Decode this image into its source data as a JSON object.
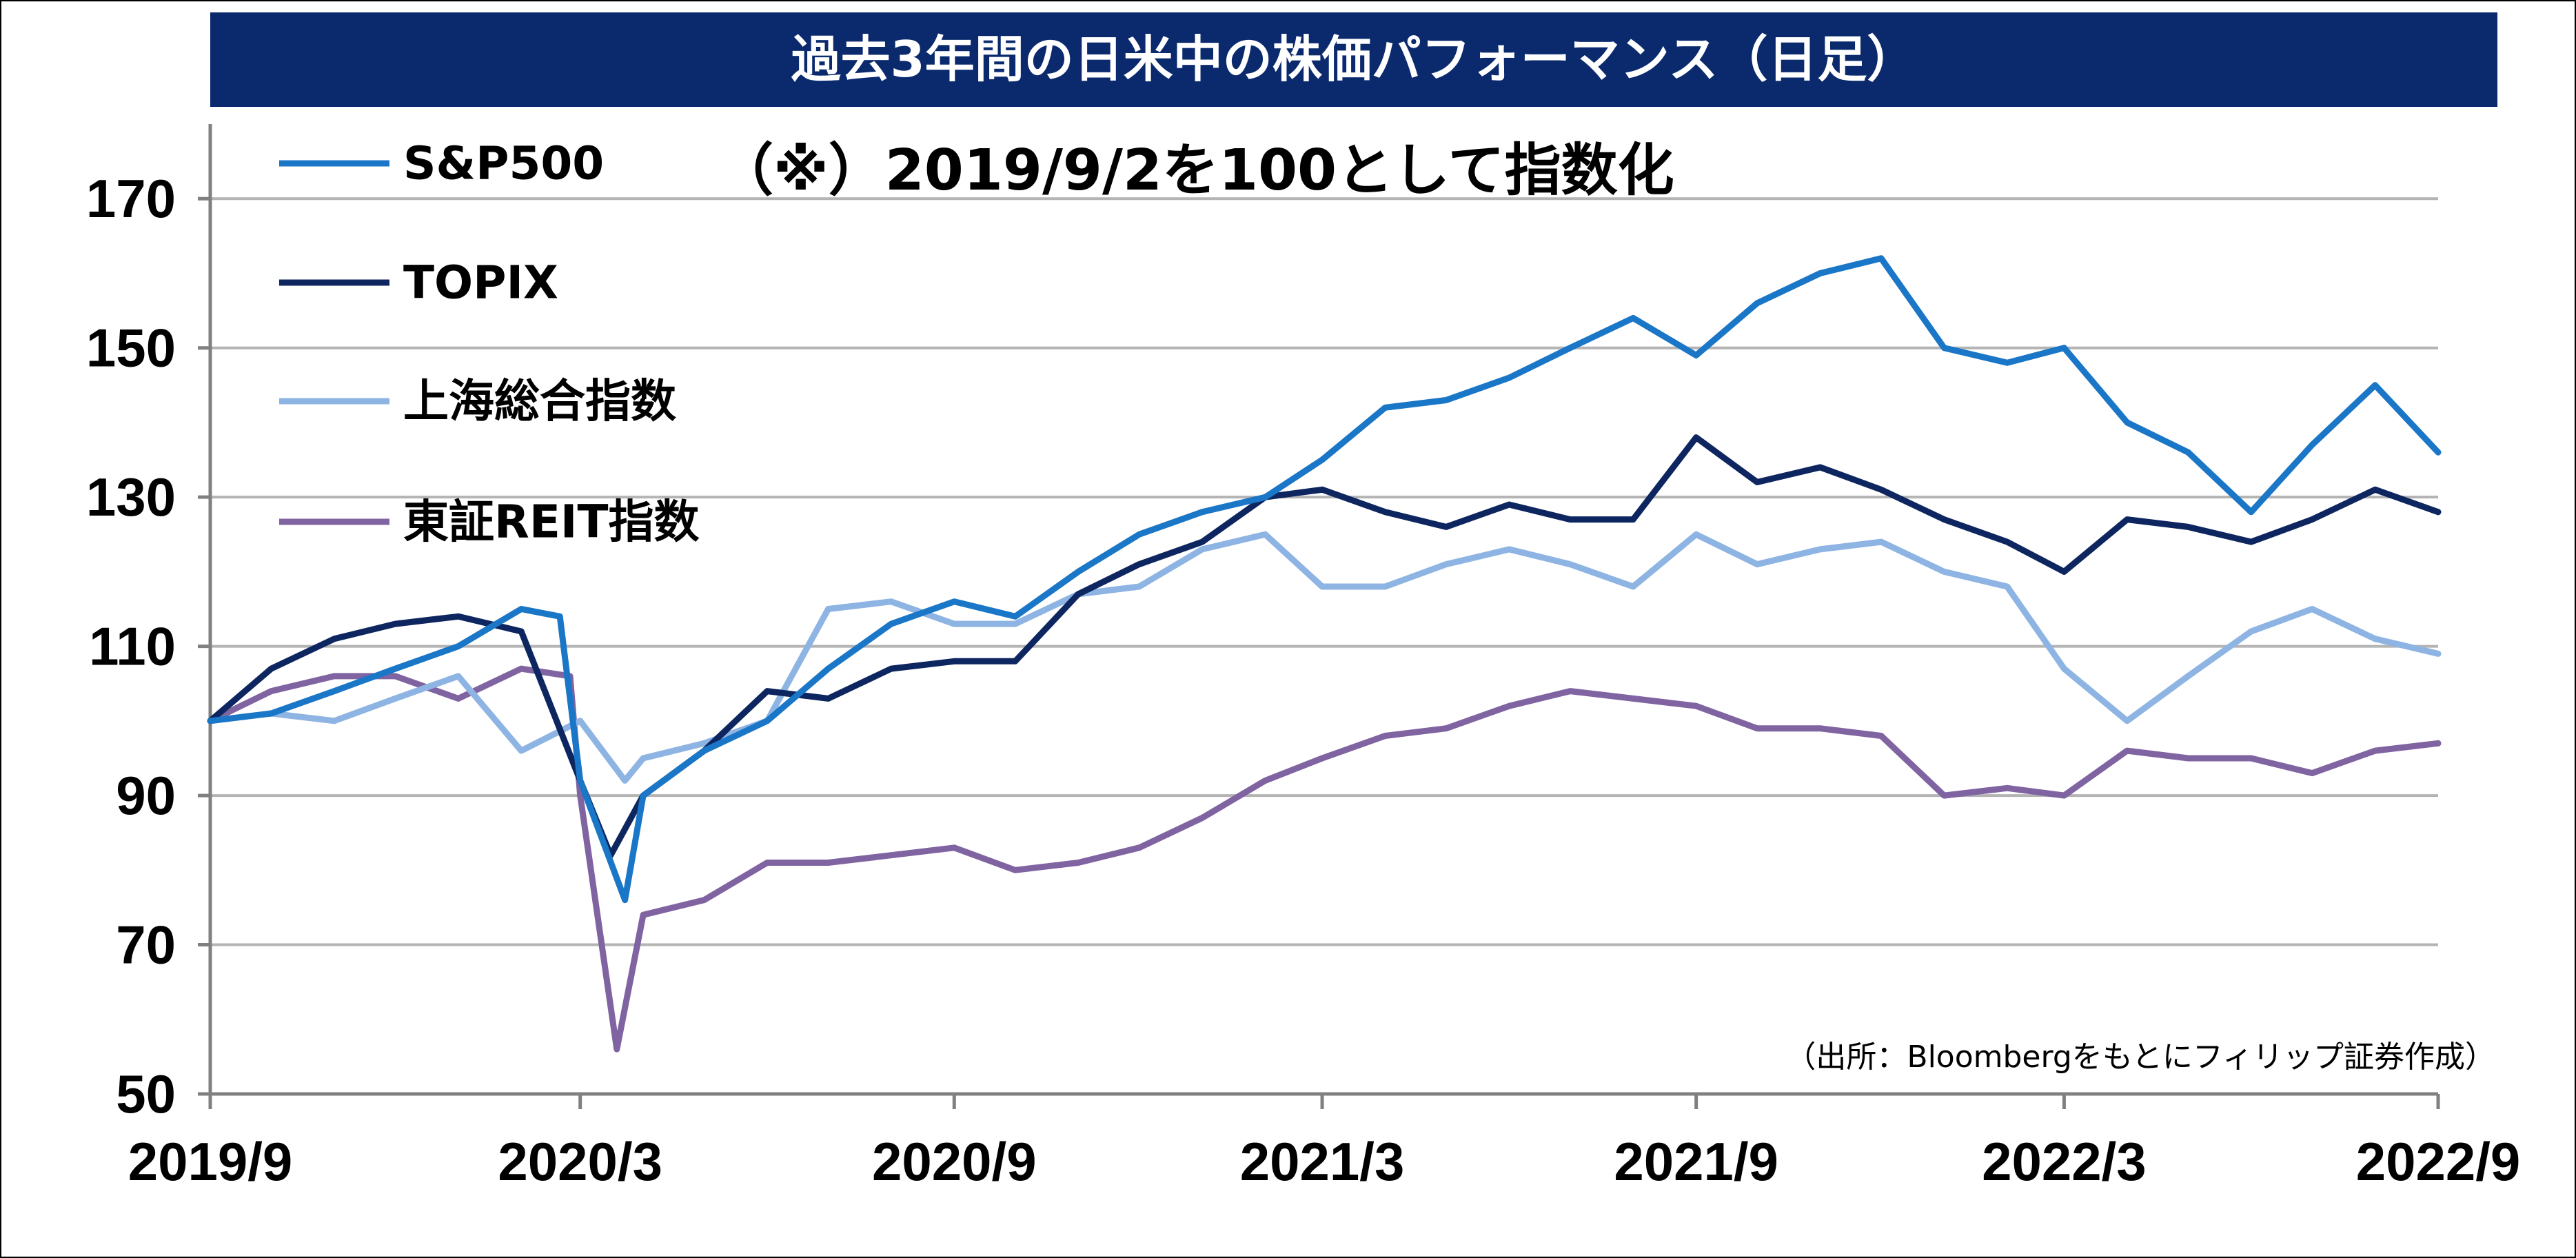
{
  "chart_data": {
    "type": "line",
    "title": "過去3年間の日米中の株価パフォーマンス（日足）",
    "annotation": "（※）2019/9/2を100として指数化",
    "source": "（出所：Bloombergをもとにフィリップ証券作成）",
    "xlabel": "",
    "ylabel": "",
    "ylim": [
      50,
      180
    ],
    "yticks": [
      50,
      70,
      90,
      110,
      130,
      150,
      170
    ],
    "xticks": [
      "2019/9",
      "2020/3",
      "2020/9",
      "2021/3",
      "2021/9",
      "2022/3",
      "2022/9"
    ],
    "grid": true,
    "legend": "top-left",
    "colors": {
      "title_bg": "#0b2a6e",
      "grid": "#b4b4b4",
      "axis": "#808080"
    },
    "series": [
      {
        "name": "S&P500",
        "color": "#1a76c6",
        "points": [
          [
            "2019/9",
            100
          ],
          [
            "2019/10",
            101
          ],
          [
            "2019/11",
            104
          ],
          [
            "2019/12",
            107
          ],
          [
            "2020/1",
            110
          ],
          [
            "2020/2",
            115
          ],
          [
            "2020/2/20",
            114
          ],
          [
            "2020/3",
            92
          ],
          [
            "2020/3/23",
            76
          ],
          [
            "2020/4",
            90
          ],
          [
            "2020/5",
            96
          ],
          [
            "2020/6",
            100
          ],
          [
            "2020/7",
            107
          ],
          [
            "2020/8",
            113
          ],
          [
            "2020/9",
            116
          ],
          [
            "2020/10",
            114
          ],
          [
            "2020/11",
            120
          ],
          [
            "2020/12",
            125
          ],
          [
            "2021/1",
            128
          ],
          [
            "2021/2",
            130
          ],
          [
            "2021/3",
            135
          ],
          [
            "2021/4",
            142
          ],
          [
            "2021/5",
            143
          ],
          [
            "2021/6",
            146
          ],
          [
            "2021/7",
            150
          ],
          [
            "2021/8",
            154
          ],
          [
            "2021/9",
            149
          ],
          [
            "2021/10",
            156
          ],
          [
            "2021/11",
            160
          ],
          [
            "2021/12",
            162
          ],
          [
            "2022/1",
            150
          ],
          [
            "2022/2",
            148
          ],
          [
            "2022/3",
            150
          ],
          [
            "2022/4",
            140
          ],
          [
            "2022/5",
            136
          ],
          [
            "2022/6",
            128
          ],
          [
            "2022/7",
            137
          ],
          [
            "2022/8",
            145
          ],
          [
            "2022/9",
            136
          ]
        ]
      },
      {
        "name": "TOPIX",
        "color": "#0d2660",
        "points": [
          [
            "2019/9",
            100
          ],
          [
            "2019/10",
            107
          ],
          [
            "2019/11",
            111
          ],
          [
            "2019/12",
            113
          ],
          [
            "2020/1",
            114
          ],
          [
            "2020/2",
            112
          ],
          [
            "2020/3",
            92
          ],
          [
            "2020/3/16",
            82
          ],
          [
            "2020/4",
            90
          ],
          [
            "2020/5",
            96
          ],
          [
            "2020/6",
            104
          ],
          [
            "2020/7",
            103
          ],
          [
            "2020/8",
            107
          ],
          [
            "2020/9",
            108
          ],
          [
            "2020/10",
            108
          ],
          [
            "2020/11",
            117
          ],
          [
            "2020/12",
            121
          ],
          [
            "2021/1",
            124
          ],
          [
            "2021/2",
            130
          ],
          [
            "2021/3",
            131
          ],
          [
            "2021/4",
            128
          ],
          [
            "2021/5",
            126
          ],
          [
            "2021/6",
            129
          ],
          [
            "2021/7",
            127
          ],
          [
            "2021/8",
            127
          ],
          [
            "2021/9",
            138
          ],
          [
            "2021/10",
            132
          ],
          [
            "2021/11",
            134
          ],
          [
            "2021/12",
            131
          ],
          [
            "2022/1",
            127
          ],
          [
            "2022/2",
            124
          ],
          [
            "2022/3",
            120
          ],
          [
            "2022/4",
            127
          ],
          [
            "2022/5",
            126
          ],
          [
            "2022/6",
            124
          ],
          [
            "2022/7",
            127
          ],
          [
            "2022/8",
            131
          ],
          [
            "2022/9",
            128
          ]
        ]
      },
      {
        "name": "上海総合指数",
        "color": "#8db4e3",
        "points": [
          [
            "2019/9",
            100
          ],
          [
            "2019/10",
            101
          ],
          [
            "2019/11",
            100
          ],
          [
            "2019/12",
            103
          ],
          [
            "2020/1",
            106
          ],
          [
            "2020/2",
            96
          ],
          [
            "2020/3",
            100
          ],
          [
            "2020/3/23",
            92
          ],
          [
            "2020/4",
            95
          ],
          [
            "2020/5",
            97
          ],
          [
            "2020/6",
            100
          ],
          [
            "2020/7",
            115
          ],
          [
            "2020/8",
            116
          ],
          [
            "2020/9",
            113
          ],
          [
            "2020/10",
            113
          ],
          [
            "2020/11",
            117
          ],
          [
            "2020/12",
            118
          ],
          [
            "2021/1",
            123
          ],
          [
            "2021/2",
            125
          ],
          [
            "2021/3",
            118
          ],
          [
            "2021/4",
            118
          ],
          [
            "2021/5",
            121
          ],
          [
            "2021/6",
            123
          ],
          [
            "2021/7",
            121
          ],
          [
            "2021/8",
            118
          ],
          [
            "2021/9",
            125
          ],
          [
            "2021/10",
            121
          ],
          [
            "2021/11",
            123
          ],
          [
            "2021/12",
            124
          ],
          [
            "2022/1",
            120
          ],
          [
            "2022/2",
            118
          ],
          [
            "2022/3",
            107
          ],
          [
            "2022/4",
            100
          ],
          [
            "2022/5",
            106
          ],
          [
            "2022/6",
            112
          ],
          [
            "2022/7",
            115
          ],
          [
            "2022/8",
            111
          ],
          [
            "2022/9",
            109
          ]
        ]
      },
      {
        "name": "東証REIT指数",
        "color": "#8064a2",
        "points": [
          [
            "2019/9",
            100
          ],
          [
            "2019/10",
            104
          ],
          [
            "2019/11",
            106
          ],
          [
            "2019/12",
            106
          ],
          [
            "2020/1",
            103
          ],
          [
            "2020/2",
            107
          ],
          [
            "2020/2/25",
            106
          ],
          [
            "2020/3",
            90
          ],
          [
            "2020/3/19",
            56
          ],
          [
            "2020/4",
            74
          ],
          [
            "2020/5",
            76
          ],
          [
            "2020/6",
            81
          ],
          [
            "2020/7",
            81
          ],
          [
            "2020/8",
            82
          ],
          [
            "2020/9",
            83
          ],
          [
            "2020/10",
            80
          ],
          [
            "2020/11",
            81
          ],
          [
            "2020/12",
            83
          ],
          [
            "2021/1",
            87
          ],
          [
            "2021/2",
            92
          ],
          [
            "2021/3",
            95
          ],
          [
            "2021/4",
            98
          ],
          [
            "2021/5",
            99
          ],
          [
            "2021/6",
            102
          ],
          [
            "2021/7",
            104
          ],
          [
            "2021/8",
            103
          ],
          [
            "2021/9",
            102
          ],
          [
            "2021/10",
            99
          ],
          [
            "2021/11",
            99
          ],
          [
            "2021/12",
            98
          ],
          [
            "2022/1",
            90
          ],
          [
            "2022/2",
            91
          ],
          [
            "2022/3",
            90
          ],
          [
            "2022/4",
            96
          ],
          [
            "2022/5",
            95
          ],
          [
            "2022/6",
            95
          ],
          [
            "2022/7",
            93
          ],
          [
            "2022/8",
            96
          ],
          [
            "2022/9",
            97
          ]
        ]
      }
    ]
  }
}
